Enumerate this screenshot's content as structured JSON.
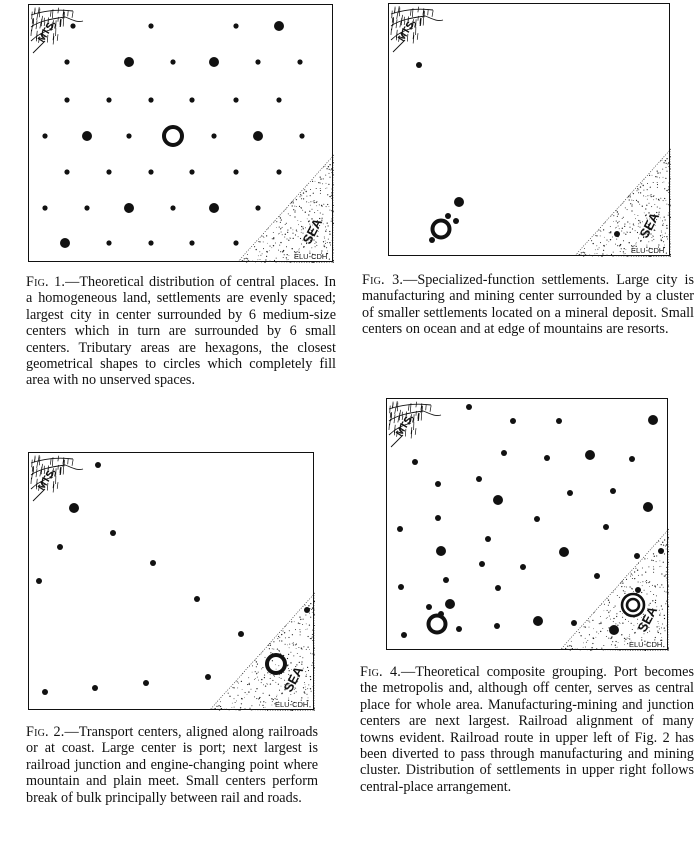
{
  "figures": [
    {
      "id": "fig1",
      "mountain_label": "MTS.",
      "sea_label": "SEA",
      "credit": "ELU-CDH",
      "caption_label": "Fig. 1.",
      "caption_text": "—Theoretical distribution of central places. In a homogeneous land, settlements are evenly spaced; largest city in center surrounded by 6 medium-size centers which in turn are surrounded by 6 small centers. Tributary areas are hexagons, the closest geometrical shapes to circles which completely fill area with no unserved spaces."
    },
    {
      "id": "fig2",
      "mountain_label": "MTS.",
      "sea_label": "SEA",
      "credit": "ELU-CDH",
      "caption_label": "Fig. 2.",
      "caption_text": "—Transport centers, aligned along railroads or at coast. Large center is port; next largest is railroad junction and engine-changing point where mountain and plain meet. Small centers perform break of bulk principally between rail and roads."
    },
    {
      "id": "fig3",
      "mountain_label": "MTS.",
      "sea_label": "SEA",
      "credit": "ELU-CDH",
      "caption_label": "Fig. 3.",
      "caption_text": "—Specialized-function settlements. Large city is manufacturing and mining center surrounded by a cluster of smaller settlements located on a mineral deposit. Small centers on ocean and at edge of mountains are resorts."
    },
    {
      "id": "fig4",
      "mountain_label": "MTS.",
      "sea_label": "SEA",
      "credit": "ELU-CDH",
      "caption_label": "Fig. 4.",
      "caption_text": "—Theoretical composite grouping. Port becomes the metropolis and, although off center, serves as central place for whole area. Manufacturing-mining and junction centers are next largest. Railroad alignment of many towns evident. Railroad route in upper left of Fig. 2 has been diverted to pass through manufacturing and mining cluster. Distribution of settlements in upper right follows central-place arrangement."
    }
  ]
}
